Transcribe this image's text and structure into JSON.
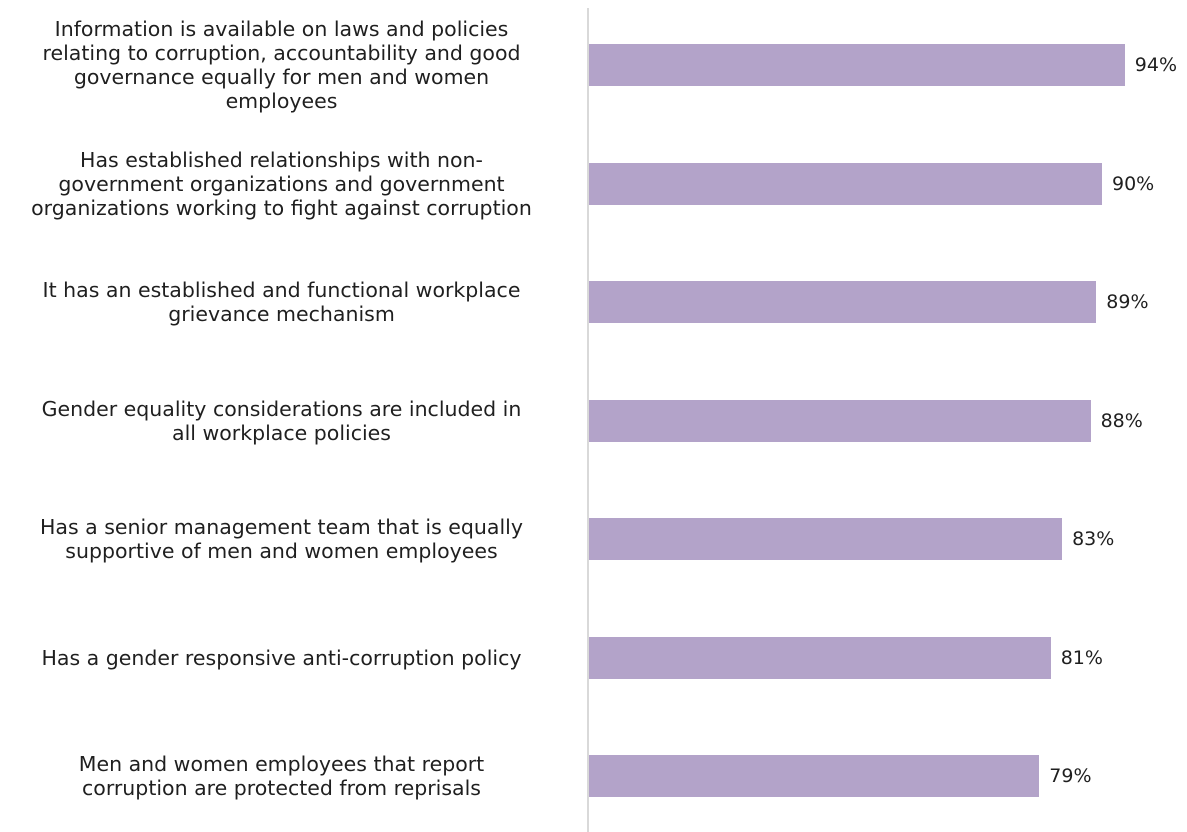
{
  "chart_data": {
    "type": "bar",
    "orientation": "horizontal",
    "categories": [
      "Information is available on laws and policies relating to corruption, accountability and good governance equally for men and women employees",
      "Has established relationships with non-government organizations and government organizations working to fight against corruption",
      "It has an established and functional workplace grievance mechanism",
      "Gender equality considerations are included in all workplace policies",
      "Has a senior management team that is equally supportive of men and women employees",
      "Has a gender responsive anti-corruption policy",
      "Men and women employees that report corruption are protected from reprisals"
    ],
    "category_lines": [
      [
        "Information is available on laws and policies",
        "relating to corruption, accountability and good",
        "governance equally for men and women",
        "employees"
      ],
      [
        "Has established relationships with non-",
        "government organizations and government",
        "organizations working to fight against corruption"
      ],
      [
        "It has an established and functional workplace",
        "grievance mechanism"
      ],
      [
        "Gender equality considerations are included in",
        "all workplace policies"
      ],
      [
        "Has a senior management team that is equally",
        "supportive of men and women employees"
      ],
      [
        "Has a gender responsive anti-corruption policy"
      ],
      [
        "Men and women employees that report",
        "corruption are protected from reprisals"
      ]
    ],
    "values": [
      94,
      90,
      89,
      88,
      83,
      81,
      79
    ],
    "value_labels": [
      "94%",
      "90%",
      "89%",
      "88%",
      "83%",
      "81%",
      "79%"
    ],
    "unit": "%",
    "xlim": [
      0,
      100
    ],
    "bar_color": "#b3a3c9",
    "grid": false,
    "legend": "none"
  }
}
